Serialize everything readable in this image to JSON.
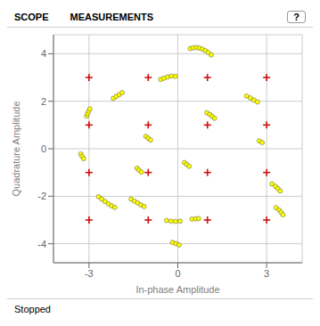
{
  "chart_data": {
    "type": "scatter",
    "xlabel": "In-phase Amplitude",
    "ylabel": "Quadrature Amplitude",
    "annotations": [
      "SCOPE",
      "MEASUREMENTS",
      "?",
      "Stopped"
    ],
    "xlim": [
      -4.2,
      4.2
    ],
    "ylim": [
      -4.8,
      4.8
    ],
    "xticks": [
      -3,
      0,
      3
    ],
    "yticks": [
      -4,
      -2,
      0,
      2,
      4
    ],
    "grid": true,
    "series": [
      {
        "color": "#cc1111",
        "marker": "plus",
        "x": [
          -3,
          -1,
          1,
          3,
          -3,
          -1,
          1,
          3,
          -3,
          -1,
          1,
          3,
          -3,
          -1,
          1,
          3
        ],
        "values": [
          3,
          3,
          3,
          3,
          1,
          1,
          1,
          1,
          -1,
          -1,
          -1,
          -1,
          -3,
          -3,
          -3,
          -3
        ]
      },
      {
        "color": "#ffff00",
        "marker": "circle",
        "x": [
          0.42,
          0.52,
          0.62,
          0.72,
          0.82,
          0.93,
          1.03,
          1.13,
          -0.58,
          -0.47,
          -0.35,
          -0.22,
          -0.08,
          -2.18,
          -2.08,
          -1.98,
          -1.88,
          -3.08,
          -3.05,
          -3.01,
          -2.97,
          -3.28,
          -3.23,
          -3.18,
          -2.68,
          -2.57,
          -2.46,
          -2.35,
          -2.24,
          -2.13,
          -1.58,
          -1.47,
          -1.36,
          -1.25,
          -1.14,
          -0.38,
          -0.23,
          -0.08,
          0.08,
          0.48,
          0.6,
          0.7,
          -0.18,
          -0.07,
          0.04,
          0.98,
          1.08,
          1.16,
          1.24,
          2.32,
          2.45,
          2.57,
          2.69,
          3.18,
          3.3,
          3.38,
          3.46,
          3.32,
          3.42,
          3.49,
          3.55,
          -1.38,
          -1.31,
          -1.23,
          0.22,
          0.3,
          0.38,
          -1.08,
          -1.0,
          -0.92,
          2.75,
          2.85
        ],
        "values": [
          4.22,
          4.25,
          4.26,
          4.24,
          4.2,
          4.13,
          4.05,
          3.95,
          2.92,
          2.97,
          3.02,
          3.06,
          3.05,
          2.12,
          2.2,
          2.28,
          2.36,
          1.38,
          1.48,
          1.58,
          1.68,
          -0.22,
          -0.32,
          -0.42,
          -2.02,
          -2.12,
          -2.22,
          -2.32,
          -2.4,
          -2.47,
          -2.12,
          -2.2,
          -2.28,
          -2.36,
          -2.43,
          -3.02,
          -3.05,
          -3.06,
          -3.05,
          -2.96,
          -2.95,
          -2.94,
          -3.94,
          -3.99,
          -4.05,
          1.52,
          1.44,
          1.36,
          1.28,
          2.22,
          2.14,
          2.05,
          1.97,
          -1.48,
          -1.58,
          -1.68,
          -1.78,
          -2.48,
          -2.58,
          -2.68,
          -2.78,
          -0.82,
          -0.9,
          -0.98,
          -0.58,
          -0.66,
          -0.74,
          0.52,
          0.44,
          0.37,
          0.33,
          0.26
        ]
      }
    ]
  }
}
